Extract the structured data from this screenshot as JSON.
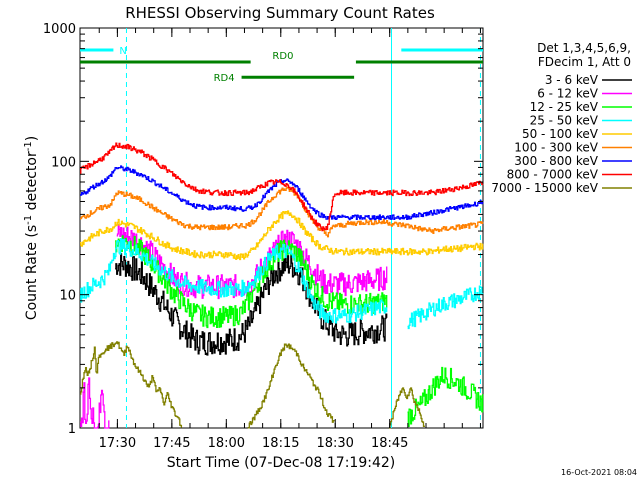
{
  "chart_data": {
    "type": "line",
    "title": "RHESSI Observing Summary Count Rates",
    "xlabel": "Start Time (07-Dec-08 17:19:42)",
    "ylabel_main": "Count Rate (s",
    "ylabel_sup1": "-1",
    "ylabel_mid": " detector",
    "ylabel_sup2": "-1",
    "ylabel_end": ")",
    "x_range_min": [
      0,
      111
    ],
    "y_scale": "log",
    "ylim": [
      1,
      1000
    ],
    "x_ticks": [
      {
        "min": 10.3,
        "label": "17:30"
      },
      {
        "min": 25.3,
        "label": "17:45"
      },
      {
        "min": 40.3,
        "label": "18:00"
      },
      {
        "min": 55.3,
        "label": "18:15"
      },
      {
        "min": 70.3,
        "label": "18:30"
      },
      {
        "min": 85.3,
        "label": "18:45"
      }
    ],
    "y_ticks": [
      {
        "value": 1,
        "label": "1"
      },
      {
        "value": 10,
        "label": "10"
      },
      {
        "value": 100,
        "label": "100"
      },
      {
        "value": 1000,
        "label": "1000"
      }
    ],
    "legend_header": [
      "Det 1,3,4,5,6,9,",
      "FDecim 1, Att 0"
    ],
    "series": [
      {
        "name": "3 - 6 keV",
        "color": "#000000",
        "x": [
          0,
          8,
          9,
          9.5,
          10,
          12,
          14,
          17,
          20,
          23,
          26,
          29,
          32,
          35,
          38,
          41,
          44,
          46,
          48,
          50,
          52,
          54,
          56,
          58,
          60,
          62,
          64,
          66,
          68,
          70,
          72,
          74,
          78,
          82,
          84.5,
          86,
          90,
          94,
          97,
          100,
          104,
          108,
          111
        ],
        "values": [
          null,
          null,
          null,
          15,
          17,
          17,
          16,
          14,
          11,
          8.5,
          6.5,
          5.2,
          4.5,
          4.4,
          4.5,
          4.5,
          4.8,
          5.5,
          7,
          9.5,
          12.5,
          15,
          16.5,
          17,
          15,
          12,
          9,
          7,
          6,
          5.3,
          5.0,
          5.0,
          5.3,
          5.5,
          5.7,
          null,
          null,
          null,
          null,
          null,
          null,
          null,
          null
        ]
      },
      {
        "name": "6 - 12 keV",
        "color": "#ff00ff",
        "x": [
          0,
          0.5,
          1,
          1.5,
          2,
          2.5,
          3,
          3.5,
          4,
          5,
          6,
          7,
          8,
          9,
          10,
          11,
          12,
          14,
          17,
          20,
          23,
          26,
          29,
          32,
          35,
          38,
          41,
          44,
          46,
          48,
          50,
          52,
          54,
          56,
          58,
          60,
          62,
          64,
          66,
          68,
          70,
          72,
          74,
          78,
          82,
          84.5,
          86,
          90,
          94,
          97,
          100,
          104,
          108,
          111
        ],
        "values": [
          1,
          1,
          2.5,
          1,
          1.4,
          2.5,
          1,
          1.6,
          1,
          1,
          2.4,
          1,
          1,
          null,
          28,
          29,
          28,
          27,
          24,
          20,
          16,
          13,
          12,
          11.5,
          11.5,
          11.5,
          11.5,
          11.5,
          11.5,
          13,
          16,
          19,
          22,
          25,
          26,
          23,
          19,
          16,
          13,
          12,
          12,
          12,
          12,
          12.5,
          13,
          13.5,
          null,
          null,
          null,
          null,
          null,
          null,
          null,
          null
        ]
      },
      {
        "name": "12 - 25 keV",
        "color": "#00ff00",
        "x": [
          0,
          8,
          9,
          9.5,
          10,
          12,
          14,
          17,
          20,
          23,
          26,
          29,
          32,
          35,
          38,
          41,
          44,
          46,
          48,
          50,
          52,
          54,
          56,
          58,
          60,
          62,
          64,
          66,
          68,
          70,
          72,
          74,
          78,
          82,
          84.5,
          86,
          90,
          94,
          97,
          100,
          104,
          108,
          111
        ],
        "values": [
          null,
          null,
          null,
          22,
          25,
          25,
          24,
          21,
          17,
          13,
          10,
          8.3,
          7.2,
          6.8,
          6.8,
          6.8,
          7.2,
          8.5,
          11,
          14,
          17,
          20,
          22,
          22,
          20,
          16,
          12,
          10,
          9,
          8.7,
          8.5,
          8.5,
          8.5,
          8.7,
          9.0,
          null,
          1.2,
          1.5,
          2,
          2.5,
          2.2,
          1.8,
          1.5
        ]
      },
      {
        "name": "25 - 50 keV",
        "color": "#00ffff",
        "x": [
          0,
          3,
          6,
          8,
          9,
          10,
          12,
          14,
          17,
          20,
          23,
          26,
          29,
          32,
          35,
          38,
          41,
          44,
          46,
          48,
          50,
          52,
          54,
          56,
          58,
          60,
          62,
          64,
          66,
          68,
          70,
          72,
          74,
          78,
          82,
          84.5,
          86,
          90,
          94,
          97,
          100,
          104,
          108,
          111
        ],
        "values": [
          10,
          11.5,
          13,
          15,
          20,
          23,
          23,
          22,
          20,
          17,
          15,
          13,
          12,
          11.5,
          11.2,
          11,
          11,
          11,
          11.5,
          13,
          15.5,
          18.5,
          20.5,
          21.5,
          20,
          16,
          12,
          9,
          7.5,
          7,
          7,
          7,
          7,
          7.5,
          8,
          8.2,
          null,
          6.2,
          7,
          7.8,
          8.5,
          9.2,
          10,
          11
        ]
      },
      {
        "name": "50 - 100 keV",
        "color": "#ffcc00",
        "x": [
          0,
          3,
          6,
          8,
          9,
          10,
          12,
          14,
          17,
          20,
          23,
          26,
          29,
          32,
          35,
          38,
          41,
          44,
          46,
          48,
          50,
          52,
          54,
          56,
          58,
          60,
          62,
          64,
          66,
          68,
          70,
          72,
          74,
          78,
          82,
          84.5,
          86,
          90,
          94,
          97,
          100,
          104,
          108,
          111
        ],
        "values": [
          24,
          27,
          30,
          31,
          32,
          35,
          34,
          33,
          30,
          27,
          24,
          22,
          21,
          20,
          20,
          20,
          20,
          19,
          20,
          22,
          26,
          31,
          36,
          40,
          41,
          36,
          30,
          26,
          23,
          22,
          21,
          21,
          21,
          21,
          21,
          21,
          21,
          21,
          21,
          21,
          22,
          22,
          23,
          23
        ]
      },
      {
        "name": "100 - 300 keV",
        "color": "#ff8000",
        "x": [
          0,
          3,
          6,
          8,
          9,
          10,
          12,
          14,
          17,
          20,
          23,
          26,
          29,
          32,
          35,
          38,
          41,
          44,
          46,
          48,
          50,
          52,
          54,
          56,
          58,
          60,
          62,
          64,
          66,
          68,
          70,
          72,
          74,
          78,
          82,
          84.5,
          86,
          90,
          94,
          97,
          100,
          104,
          108,
          111
        ],
        "values": [
          37,
          41,
          45,
          47,
          50,
          58,
          57,
          55,
          51,
          45,
          40,
          36,
          33,
          32,
          32,
          32,
          32,
          33,
          33,
          36,
          42,
          50,
          57,
          62,
          61,
          55,
          44,
          36,
          31,
          28,
          33,
          33,
          34,
          35,
          35,
          35,
          34,
          33,
          31,
          30,
          31,
          32,
          33,
          34
        ]
      },
      {
        "name": "300 - 800 keV",
        "color": "#0000ff",
        "x": [
          0,
          3,
          6,
          8,
          9,
          10,
          12,
          14,
          17,
          20,
          23,
          26,
          29,
          32,
          35,
          38,
          41,
          44,
          46,
          48,
          50,
          52,
          54,
          56,
          58,
          60,
          62,
          64,
          66,
          68,
          70,
          72,
          74,
          78,
          82,
          84.5,
          86,
          90,
          94,
          97,
          100,
          104,
          108,
          111
        ],
        "values": [
          55,
          63,
          70,
          76,
          83,
          90,
          88,
          85,
          79,
          71,
          63,
          56,
          50,
          46,
          45,
          45,
          45,
          44,
          44,
          46,
          52,
          60,
          67,
          72,
          70,
          62,
          52,
          44,
          40,
          38,
          38,
          38,
          38,
          38,
          38,
          38,
          38,
          38,
          40,
          41,
          43,
          45,
          47,
          50
        ]
      },
      {
        "name": "800 - 7000 keV",
        "color": "#ff0000",
        "x": [
          0,
          3,
          6,
          8,
          9,
          10,
          12,
          14,
          17,
          20,
          23,
          26,
          29,
          32,
          35,
          38,
          41,
          44,
          46,
          48,
          50,
          52,
          54,
          56,
          58,
          60,
          62,
          64,
          66,
          68,
          70,
          72,
          74,
          78,
          82,
          84.5,
          86,
          90,
          94,
          97,
          100,
          104,
          108,
          111
        ],
        "values": [
          85,
          95,
          105,
          115,
          125,
          132,
          130,
          126,
          116,
          103,
          90,
          78,
          68,
          61,
          59,
          58,
          58,
          58,
          58,
          61,
          65,
          69,
          70,
          69,
          64,
          55,
          45,
          37,
          32,
          31,
          57,
          58,
          58,
          58,
          58,
          58,
          58,
          58,
          58,
          58,
          60,
          63,
          66,
          70
        ]
      },
      {
        "name": "7000 - 15000 keV",
        "color": "#808000",
        "x": [
          0,
          1,
          1.5,
          2,
          3,
          4,
          4.5,
          5,
          6,
          7,
          8,
          9,
          10,
          11,
          12,
          13,
          14,
          15,
          16,
          17,
          18,
          19,
          20,
          21,
          22,
          23,
          24,
          25,
          26,
          27,
          28,
          30,
          33,
          36,
          40,
          44,
          46,
          48,
          50,
          52,
          53,
          54,
          55,
          56,
          57,
          58,
          59,
          60,
          61,
          62,
          63,
          64,
          65,
          66,
          67,
          68,
          70,
          73,
          76,
          80,
          84,
          85,
          86,
          87,
          88,
          89,
          90,
          91,
          92,
          93,
          94,
          95,
          96,
          97,
          98,
          99,
          100,
          101,
          102,
          103,
          104,
          105,
          106,
          107,
          108,
          109,
          110,
          111
        ],
        "values": [
          1.8,
          2.5,
          3,
          2.5,
          3,
          4,
          2.5,
          3.5,
          3.5,
          4,
          4,
          4.2,
          4.5,
          4,
          3.5,
          4.2,
          3.5,
          3,
          2.7,
          2.5,
          2.2,
          2,
          2.5,
          1.8,
          2,
          1.5,
          1.8,
          1.5,
          1.3,
          1.2,
          1,
          null,
          null,
          null,
          null,
          null,
          1,
          1.2,
          1.5,
          2,
          2.5,
          3,
          3.5,
          4,
          4.2,
          4,
          3.8,
          3.5,
          3,
          2.7,
          2.5,
          2.2,
          2,
          1.8,
          1.5,
          1.3,
          1.1,
          null,
          null,
          null,
          null,
          1,
          1.2,
          1.5,
          1.8,
          2,
          1.7,
          2,
          1.6,
          1.4,
          1.2,
          1,
          null,
          null,
          null,
          null,
          null,
          null,
          null,
          null,
          null,
          null,
          null,
          null,
          null,
          null,
          null,
          null
        ]
      }
    ],
    "annotations": {
      "bars": [
        {
          "label": "N",
          "color": "#00ffff",
          "segments": [
            [
              0,
              9.2
            ],
            [
              88.5,
              111
            ]
          ],
          "y_frac": 0.055
        },
        {
          "label": "RD0",
          "color": "#008000",
          "segments": [
            [
              0,
              47
            ],
            [
              76,
              111
            ]
          ],
          "y_frac": 0.085
        },
        {
          "label": "RD4",
          "color": "#008000",
          "segments": [
            [
              44.5,
              75.5
            ]
          ],
          "y_frac": 0.123
        }
      ],
      "solid_vlines_min": [
        85.8
      ],
      "dashed_vlines_min": [
        12.8,
        110.3
      ],
      "solid_vline_color": "#00ffff"
    },
    "footer_timestamp": "16-Oct-2021 08:04"
  }
}
